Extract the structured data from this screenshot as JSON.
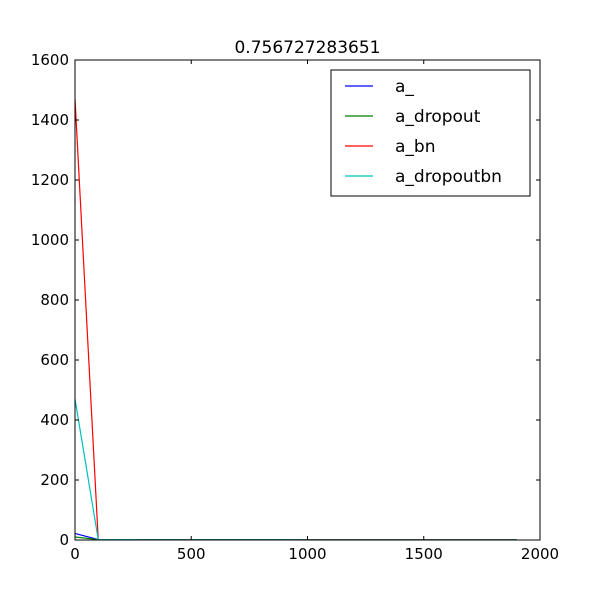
{
  "chart_data": {
    "type": "line",
    "title": "0.756727283651",
    "xlabel": "",
    "ylabel": "",
    "xlim": [
      0,
      2000
    ],
    "ylim": [
      0,
      1600
    ],
    "x_ticks": [
      0,
      500,
      1000,
      1500,
      2000
    ],
    "y_ticks": [
      0,
      200,
      400,
      600,
      800,
      1000,
      1200,
      1400,
      1600
    ],
    "x_tick_labels": [
      "0",
      "500",
      "1000",
      "1500",
      "2000"
    ],
    "y_tick_labels": [
      "0",
      "200",
      "400",
      "600",
      "800",
      "1000",
      "1200",
      "1400",
      "1600"
    ],
    "grid": false,
    "legend_position": "top-right",
    "x": [
      0,
      100,
      200,
      300,
      400,
      500,
      600,
      700,
      800,
      900,
      1000,
      1100,
      1200,
      1300,
      1400,
      1500,
      1600,
      1700,
      1800,
      1900
    ],
    "series": [
      {
        "name": "a_",
        "color": "#0000ff",
        "values": [
          22,
          1.5,
          1.2,
          1.0,
          0.9,
          0.8,
          0.8,
          0.7,
          0.7,
          0.7,
          0.6,
          0.6,
          0.6,
          0.6,
          0.6,
          0.5,
          0.5,
          0.5,
          0.5,
          0.5
        ]
      },
      {
        "name": "a_dropout",
        "color": "#008000",
        "values": [
          10,
          1.5,
          1.3,
          1.1,
          1.0,
          0.9,
          0.9,
          0.8,
          0.8,
          0.8,
          0.7,
          0.7,
          0.7,
          0.7,
          0.7,
          0.6,
          0.6,
          0.6,
          0.6,
          0.6
        ]
      },
      {
        "name": "a_bn",
        "color": "#ff0000",
        "values": [
          1470,
          1.5,
          1.2,
          1.0,
          0.9,
          0.8,
          0.8,
          0.7,
          0.7,
          0.7,
          0.6,
          0.6,
          0.6,
          0.6,
          0.6,
          0.5,
          0.5,
          0.5,
          0.5,
          0.5
        ]
      },
      {
        "name": "a_dropoutbn",
        "color": "#00bfbf",
        "values": [
          470,
          1.5,
          1.3,
          1.1,
          1.0,
          0.9,
          0.9,
          0.8,
          0.8,
          0.8,
          0.7,
          0.7,
          0.7,
          0.7,
          0.7,
          0.6,
          0.6,
          0.6,
          0.6,
          0.6
        ]
      }
    ]
  }
}
